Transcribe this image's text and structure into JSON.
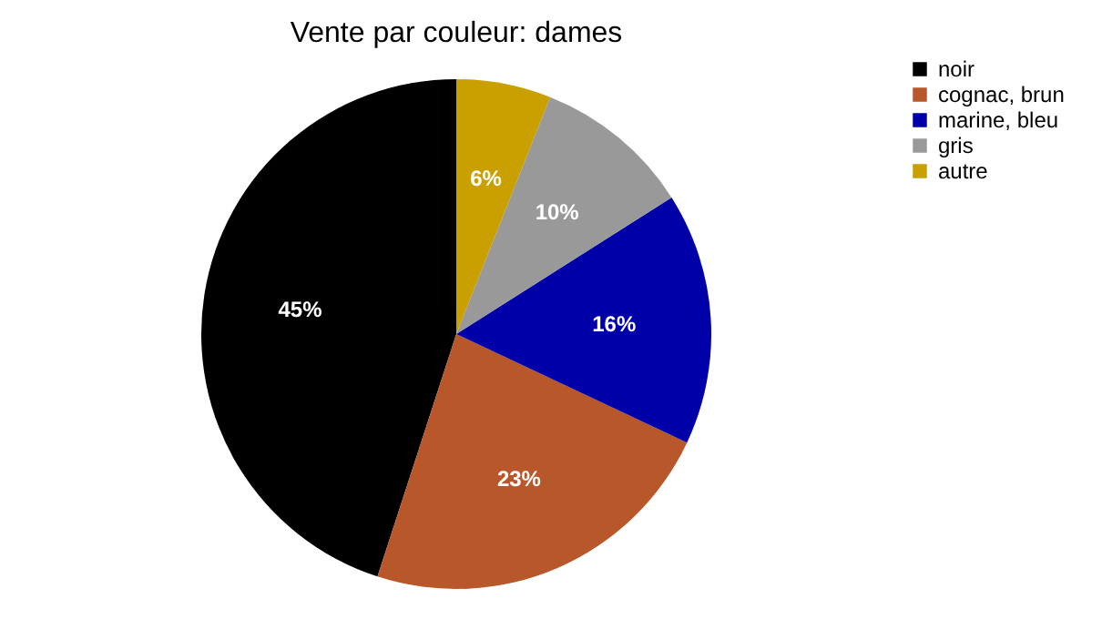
{
  "chart_data": {
    "type": "pie",
    "title": "Vente par couleur: dames",
    "categories": [
      "noir",
      "cognac, brun",
      "marine, bleu",
      "gris",
      "autre"
    ],
    "values": [
      45,
      23,
      16,
      10,
      6
    ],
    "colors": [
      "#000000",
      "#b8572a",
      "#0000a8",
      "#999999",
      "#c9a000"
    ],
    "value_labels": [
      "45%",
      "23%",
      "16%",
      "10%",
      "6%"
    ],
    "legend": "right"
  }
}
